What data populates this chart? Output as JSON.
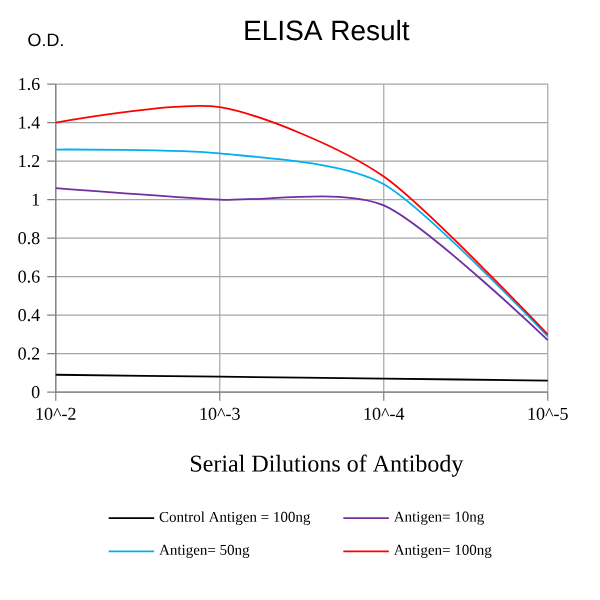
{
  "chart_data": {
    "type": "line",
    "title": "ELISA Result",
    "ylabel": "O.D.",
    "xlabel": "Serial Dilutions of Antibody",
    "categories": [
      "10^-2",
      "10^-3",
      "10^-4",
      "10^-5"
    ],
    "series": [
      {
        "name": "Control Antigen = 100ng",
        "color": "#000000",
        "values": [
          0.09,
          0.08,
          0.07,
          0.06
        ]
      },
      {
        "name": "Antigen= 10ng",
        "color": "#7030a0",
        "values": [
          1.06,
          1.0,
          0.97,
          0.27
        ]
      },
      {
        "name": "Antigen= 50ng",
        "color": "#00b0f0",
        "values": [
          1.26,
          1.24,
          1.08,
          0.29
        ]
      },
      {
        "name": "Antigen= 100ng",
        "color": "#ff0000",
        "values": [
          1.4,
          1.48,
          1.12,
          0.3
        ]
      }
    ],
    "ylim": [
      0,
      1.6
    ],
    "yticks": [
      0,
      0.2,
      0.4,
      0.6,
      0.8,
      1,
      1.2,
      1.4,
      1.6
    ],
    "grid": true,
    "legend": "bottom",
    "marker": "none",
    "line_style": "solid"
  }
}
